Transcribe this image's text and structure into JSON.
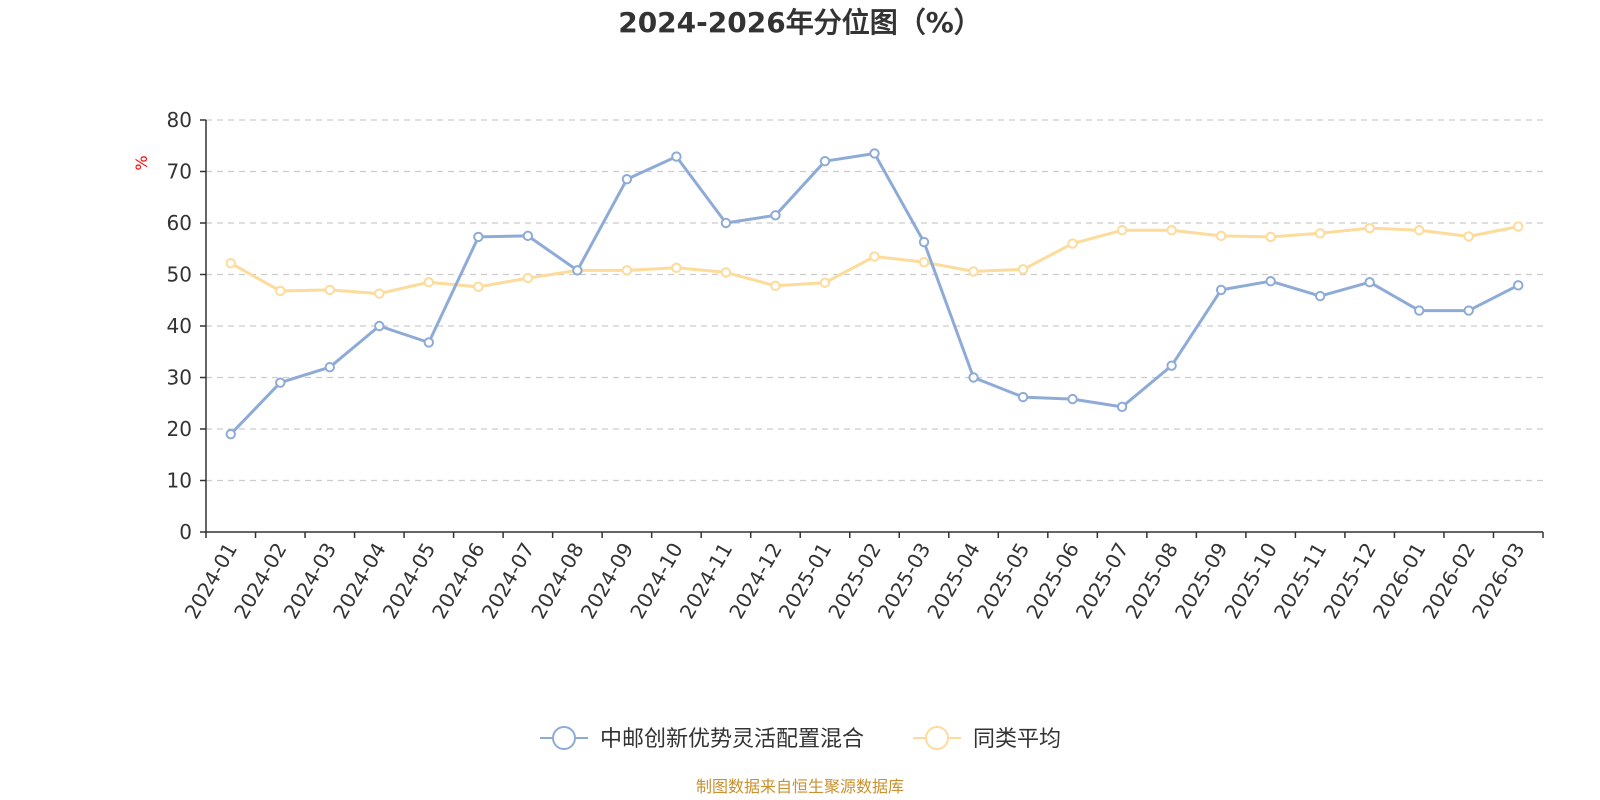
{
  "chart_data": {
    "type": "line",
    "title": "2024-2026年分位图（%）",
    "y_unit": "%",
    "ylim": [
      0,
      80
    ],
    "y_ticks": [
      0,
      10,
      20,
      30,
      40,
      50,
      60,
      70,
      80
    ],
    "grid": true,
    "legend_position": "bottom",
    "x": [
      "2024-01",
      "2024-02",
      "2024-03",
      "2024-04",
      "2024-05",
      "2024-06",
      "2024-07",
      "2024-08",
      "2024-09",
      "2024-10",
      "2024-11",
      "2024-12",
      "2025-01",
      "2025-02",
      "2025-03",
      "2025-04",
      "2025-05",
      "2025-06",
      "2025-07",
      "2025-08",
      "2025-09",
      "2025-10",
      "2025-11",
      "2025-12",
      "2026-01",
      "2026-02",
      "2026-03"
    ],
    "series": [
      {
        "name": "中邮创新优势灵活配置混合",
        "color": "#8eabd8",
        "values": [
          19.0,
          29.0,
          32.0,
          40.0,
          36.8,
          57.3,
          57.5,
          50.8,
          68.5,
          72.9,
          60.0,
          61.5,
          72.0,
          73.5,
          56.3,
          30.0,
          26.2,
          25.8,
          24.3,
          32.3,
          47.0,
          48.7,
          45.8,
          48.5,
          43.0,
          43.0,
          47.9
        ]
      },
      {
        "name": "同类平均",
        "color": "#fddb9b",
        "values": [
          52.2,
          46.8,
          47.0,
          46.3,
          48.5,
          47.6,
          49.3,
          50.8,
          50.8,
          51.3,
          50.4,
          47.8,
          48.4,
          53.5,
          52.4,
          50.6,
          51.0,
          56.0,
          58.6,
          58.6,
          57.5,
          57.3,
          58.0,
          59.0,
          58.6,
          57.4,
          59.3
        ]
      }
    ]
  },
  "footer": {
    "source": "制图数据来自恒生聚源数据库"
  }
}
